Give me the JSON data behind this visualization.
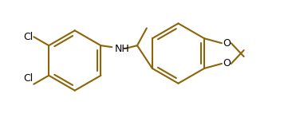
{
  "line_color": "#8B6508",
  "bg_color": "#ffffff",
  "lw": 1.5,
  "figsize": [
    3.56,
    1.52
  ],
  "dpi": 100,
  "xlim": [
    0,
    356
  ],
  "ylim": [
    0,
    152
  ],
  "cl1_label": "Cl",
  "cl2_label": "Cl",
  "nh_label": "NH",
  "o1_label": "O",
  "o2_label": "O",
  "font_size": 9
}
